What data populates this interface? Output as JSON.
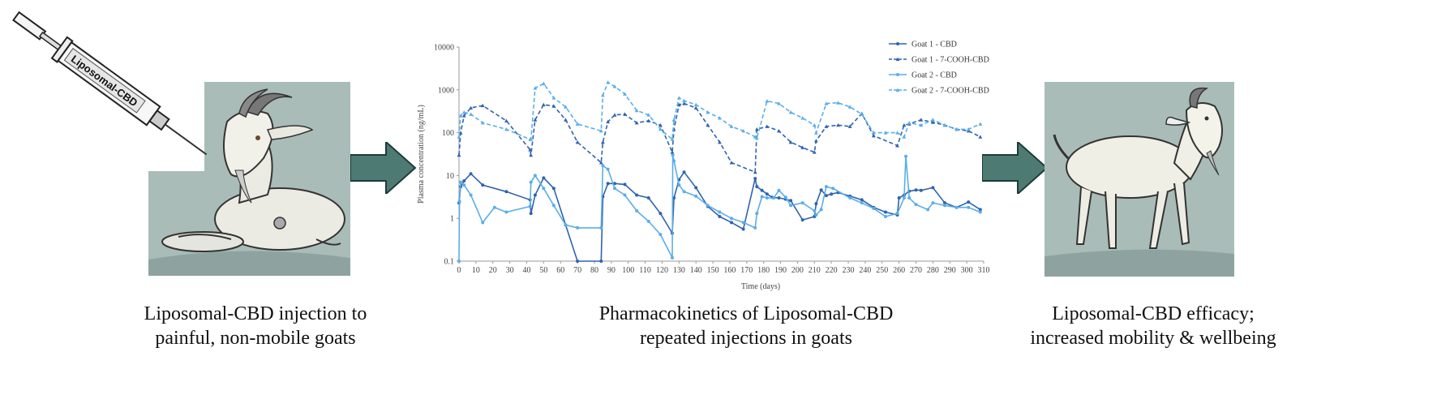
{
  "syringe_label": "Liposomal-CBD",
  "captions": {
    "left": [
      "Liposomal-CBD injection to",
      "painful, non-mobile goats"
    ],
    "middle": [
      "Pharmacokinetics of Liposomal-CBD",
      "repeated injections in goats"
    ],
    "right": [
      "Liposomal-CBD efficacy;",
      "increased mobility & wellbeing"
    ]
  },
  "colors": {
    "arrow": "#4e7a74",
    "panel_bg": "#a9bcb8",
    "dark_blue": "#3063ae",
    "light_blue": "#5aaee8"
  },
  "chart_data": {
    "type": "line",
    "title": "",
    "xlabel": "Time (days)",
    "ylabel": "Plasma concentration (ng/mL)",
    "xlim": [
      0,
      310
    ],
    "ylim": [
      0.1,
      10000
    ],
    "yscale": "log",
    "xticks": [
      "0",
      "10",
      "20",
      "30",
      "40",
      "50",
      "60",
      "70",
      "80",
      "90",
      "100",
      "110",
      "120",
      "130",
      "140",
      "150",
      "160",
      "170",
      "180",
      "190",
      "200",
      "210",
      "220",
      "230",
      "240",
      "250",
      "260",
      "270",
      "280",
      "290",
      "300",
      "310"
    ],
    "yticks": [
      "0.1",
      "1",
      "10",
      "100",
      "1000",
      "10000"
    ],
    "legend_position": "top-right",
    "series": [
      {
        "name": "Goat 1 - CBD",
        "color": "#3063ae",
        "dash": false,
        "x": [
          0,
          1,
          3,
          7,
          14,
          28,
          42,
          42.5,
          45,
          50,
          56,
          63,
          70,
          84,
          85,
          88,
          92,
          98,
          105,
          112,
          119,
          126,
          127,
          130,
          133,
          140,
          147,
          154,
          161,
          168,
          175,
          176,
          179,
          182,
          185,
          189,
          193,
          196,
          203,
          210,
          211,
          214,
          217,
          220,
          224,
          231,
          238,
          245,
          252,
          259,
          260,
          263,
          266,
          270,
          273,
          280,
          287,
          294,
          301,
          308
        ],
        "y": [
          2.3,
          5.5,
          7.5,
          11,
          6,
          4.2,
          2.7,
          1.3,
          3.5,
          8.8,
          5,
          0.7,
          0.1,
          0.1,
          3.2,
          6.5,
          6.5,
          6.2,
          3.5,
          3,
          1.3,
          0.45,
          3,
          8,
          12,
          5.2,
          1.9,
          1.1,
          0.8,
          0.56,
          8.5,
          5.5,
          4.5,
          3.7,
          3.1,
          3.0,
          2.8,
          2.6,
          0.92,
          1.1,
          2.2,
          4.6,
          3.4,
          3.7,
          4.0,
          3.3,
          2.7,
          1.8,
          1.4,
          1.2,
          3.0,
          3.5,
          4.3,
          4.6,
          4.5,
          5.2,
          2.3,
          1.8,
          2.4,
          1.6
        ]
      },
      {
        "name": "Goat 1 - 7-COOH-CBD",
        "color": "#3063ae",
        "dash": true,
        "x": [
          0,
          1,
          3,
          7,
          14,
          28,
          42,
          42.5,
          45,
          50,
          56,
          63,
          70,
          84,
          85,
          88,
          92,
          98,
          105,
          112,
          119,
          126,
          127,
          130,
          133,
          140,
          147,
          154,
          161,
          175,
          176,
          182,
          189,
          196,
          203,
          210,
          211,
          217,
          224,
          231,
          238,
          245,
          259,
          263,
          266,
          273,
          280,
          287,
          294,
          301,
          308
        ],
        "y": [
          30,
          100,
          250,
          380,
          430,
          190,
          40,
          30,
          200,
          450,
          420,
          200,
          60,
          20,
          60,
          180,
          260,
          270,
          170,
          190,
          150,
          35,
          120,
          450,
          480,
          380,
          150,
          60,
          20,
          12,
          120,
          140,
          110,
          60,
          45,
          35,
          65,
          140,
          150,
          140,
          280,
          85,
          50,
          150,
          160,
          200,
          175,
          150,
          120,
          110,
          80
        ]
      },
      {
        "name": "Goat 2 - CBD",
        "color": "#5aaee8",
        "dash": false,
        "x": [
          0,
          0.3,
          1,
          3,
          7,
          14,
          21,
          28,
          42,
          42.5,
          45,
          50,
          56,
          63,
          70,
          84,
          85,
          88,
          92,
          98,
          105,
          112,
          119,
          126,
          126.3,
          127,
          130,
          133,
          140,
          147,
          154,
          161,
          168,
          175,
          176,
          179,
          182,
          186,
          189,
          193,
          196,
          203,
          210,
          211,
          214,
          217,
          221,
          231,
          238,
          245,
          252,
          259,
          263,
          264,
          266,
          270,
          277,
          280,
          287,
          294,
          301,
          308
        ],
        "y": [
          0.1,
          2.5,
          7,
          6,
          3.5,
          0.8,
          1.8,
          1.4,
          1.9,
          7,
          10,
          5,
          2,
          0.7,
          0.6,
          0.6,
          17,
          14,
          5,
          3.5,
          1.5,
          0.85,
          0.42,
          0.12,
          30,
          22,
          6,
          4.2,
          3.3,
          2,
          1.4,
          1.0,
          0.8,
          0.6,
          1.3,
          3.2,
          3.0,
          3.0,
          4.5,
          3.1,
          2.0,
          2.3,
          1.5,
          1.2,
          1.6,
          5.5,
          5.0,
          3.0,
          2.3,
          1.7,
          1.1,
          1.3,
          3.0,
          28,
          3.0,
          2.1,
          1.6,
          2.3,
          2.0,
          1.8,
          1.8,
          1.4
        ]
      },
      {
        "name": "Goat 2 - 7-COOH-CBD",
        "color": "#5aaee8",
        "dash": true,
        "x": [
          0,
          1,
          3,
          7,
          14,
          28,
          42,
          42.5,
          45,
          50,
          56,
          63,
          70,
          84,
          85,
          88,
          92,
          98,
          105,
          112,
          119,
          126,
          127,
          130,
          133,
          140,
          147,
          154,
          161,
          168,
          175,
          176,
          182,
          189,
          196,
          203,
          210,
          211,
          217,
          224,
          231,
          238,
          245,
          252,
          259,
          263,
          266,
          273,
          280,
          287,
          294,
          301,
          308
        ],
        "y": [
          80,
          250,
          300,
          270,
          170,
          120,
          70,
          70,
          1100,
          1400,
          650,
          400,
          160,
          110,
          750,
          1500,
          1200,
          800,
          330,
          260,
          120,
          70,
          200,
          650,
          560,
          450,
          300,
          220,
          140,
          110,
          80,
          75,
          550,
          480,
          300,
          220,
          150,
          100,
          480,
          500,
          400,
          270,
          100,
          100,
          100,
          80,
          170,
          150,
          200,
          150,
          120,
          120,
          160
        ]
      }
    ]
  }
}
